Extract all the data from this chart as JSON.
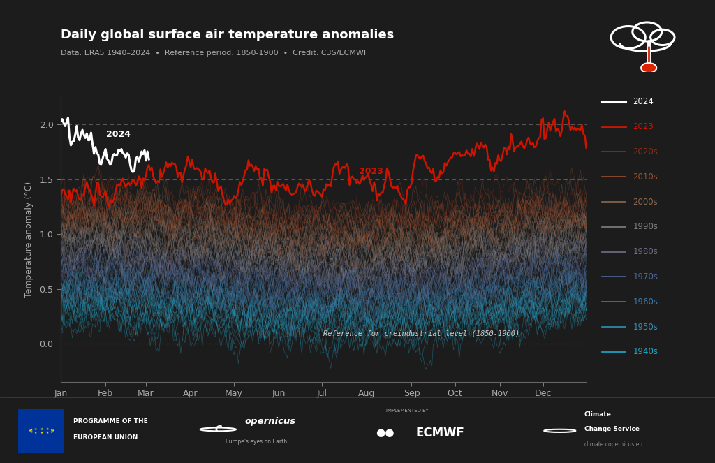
{
  "title": "Daily global surface air temperature anomalies",
  "subtitle": "Data: ERA5 1940–2024  •  Reference period: 1850-1900  •  Credit: C3S/ECMWF",
  "ylabel": "Temperature anomaly (°C)",
  "background_color": "#1c1c1c",
  "title_color": "#ffffff",
  "subtitle_color": "#aaaaaa",
  "ylabel_color": "#aaaaaa",
  "tick_color": "#aaaaaa",
  "grid_color": "#555555",
  "ylim": [
    -0.35,
    2.25
  ],
  "months": [
    "Jan",
    "Feb",
    "Mar",
    "Apr",
    "May",
    "Jun",
    "Jul",
    "Aug",
    "Sep",
    "Oct",
    "Nov",
    "Dec"
  ],
  "month_days": [
    0,
    31,
    59,
    90,
    120,
    151,
    181,
    212,
    243,
    273,
    304,
    334
  ],
  "decade_colors": {
    "2020s": "#8B3018",
    "2010s": "#9B5030",
    "2000s": "#8B6850",
    "1990s": "#808080",
    "1980s": "#707088",
    "1970s": "#506898",
    "1960s": "#4078A8",
    "1950s": "#3090B8",
    "1940s": "#20A8CC"
  },
  "legend_entries": [
    "2024",
    "2023",
    "2020s",
    "2010s",
    "2000s",
    "1990s",
    "1980s",
    "1970s",
    "1960s",
    "1950s",
    "1940s"
  ],
  "legend_colors": [
    "#ffffff",
    "#cc1500",
    "#8B3018",
    "#9B5030",
    "#8B6850",
    "#808080",
    "#707088",
    "#506898",
    "#4078A8",
    "#3090B8",
    "#20A8CC"
  ],
  "ref_text": "Reference for preindustrial level (1850-1900)",
  "ref_text_color": "#cccccc",
  "label_2024_color": "#ffffff",
  "label_2023_color": "#cc1500",
  "color_2023": "#cc1500",
  "color_2024": "#ffffff"
}
